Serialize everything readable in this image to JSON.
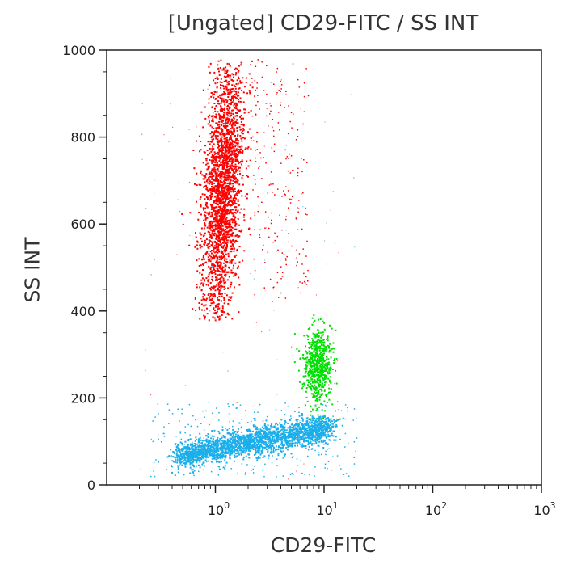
{
  "chart_data": {
    "type": "scatter",
    "title": "[Ungated] CD29-FITC / SS INT",
    "xlabel": "CD29-FITC",
    "ylabel": "SS INT",
    "xscale": "log",
    "xlim": [
      0.1,
      1000
    ],
    "ylim": [
      0,
      1000
    ],
    "x_ticks": [
      {
        "base": "10",
        "exp": "0",
        "value": 1
      },
      {
        "base": "10",
        "exp": "1",
        "value": 10
      },
      {
        "base": "10",
        "exp": "2",
        "value": 100
      },
      {
        "base": "10",
        "exp": "3",
        "value": 1000
      }
    ],
    "y_ticks": [
      {
        "label": "0",
        "value": 0
      },
      {
        "label": "200",
        "value": 200
      },
      {
        "label": "400",
        "value": 400
      },
      {
        "label": "600",
        "value": 600
      },
      {
        "label": "800",
        "value": 800
      },
      {
        "label": "1000",
        "value": 1000
      }
    ],
    "grid": false,
    "populations": [
      {
        "color": "#ff0000",
        "x_center": 1.15,
        "y_range": [
          400,
          960
        ],
        "x_spread": [
          0.6,
          3.5
        ]
      },
      {
        "color": "#00e000",
        "x_center": 8.5,
        "y_range": [
          180,
          370
        ],
        "x_spread": [
          6,
          12
        ]
      },
      {
        "color": "#1aaeea",
        "x_center": 2.5,
        "y_range": [
          40,
          150
        ],
        "x_spread": [
          0.3,
          14
        ]
      }
    ]
  }
}
